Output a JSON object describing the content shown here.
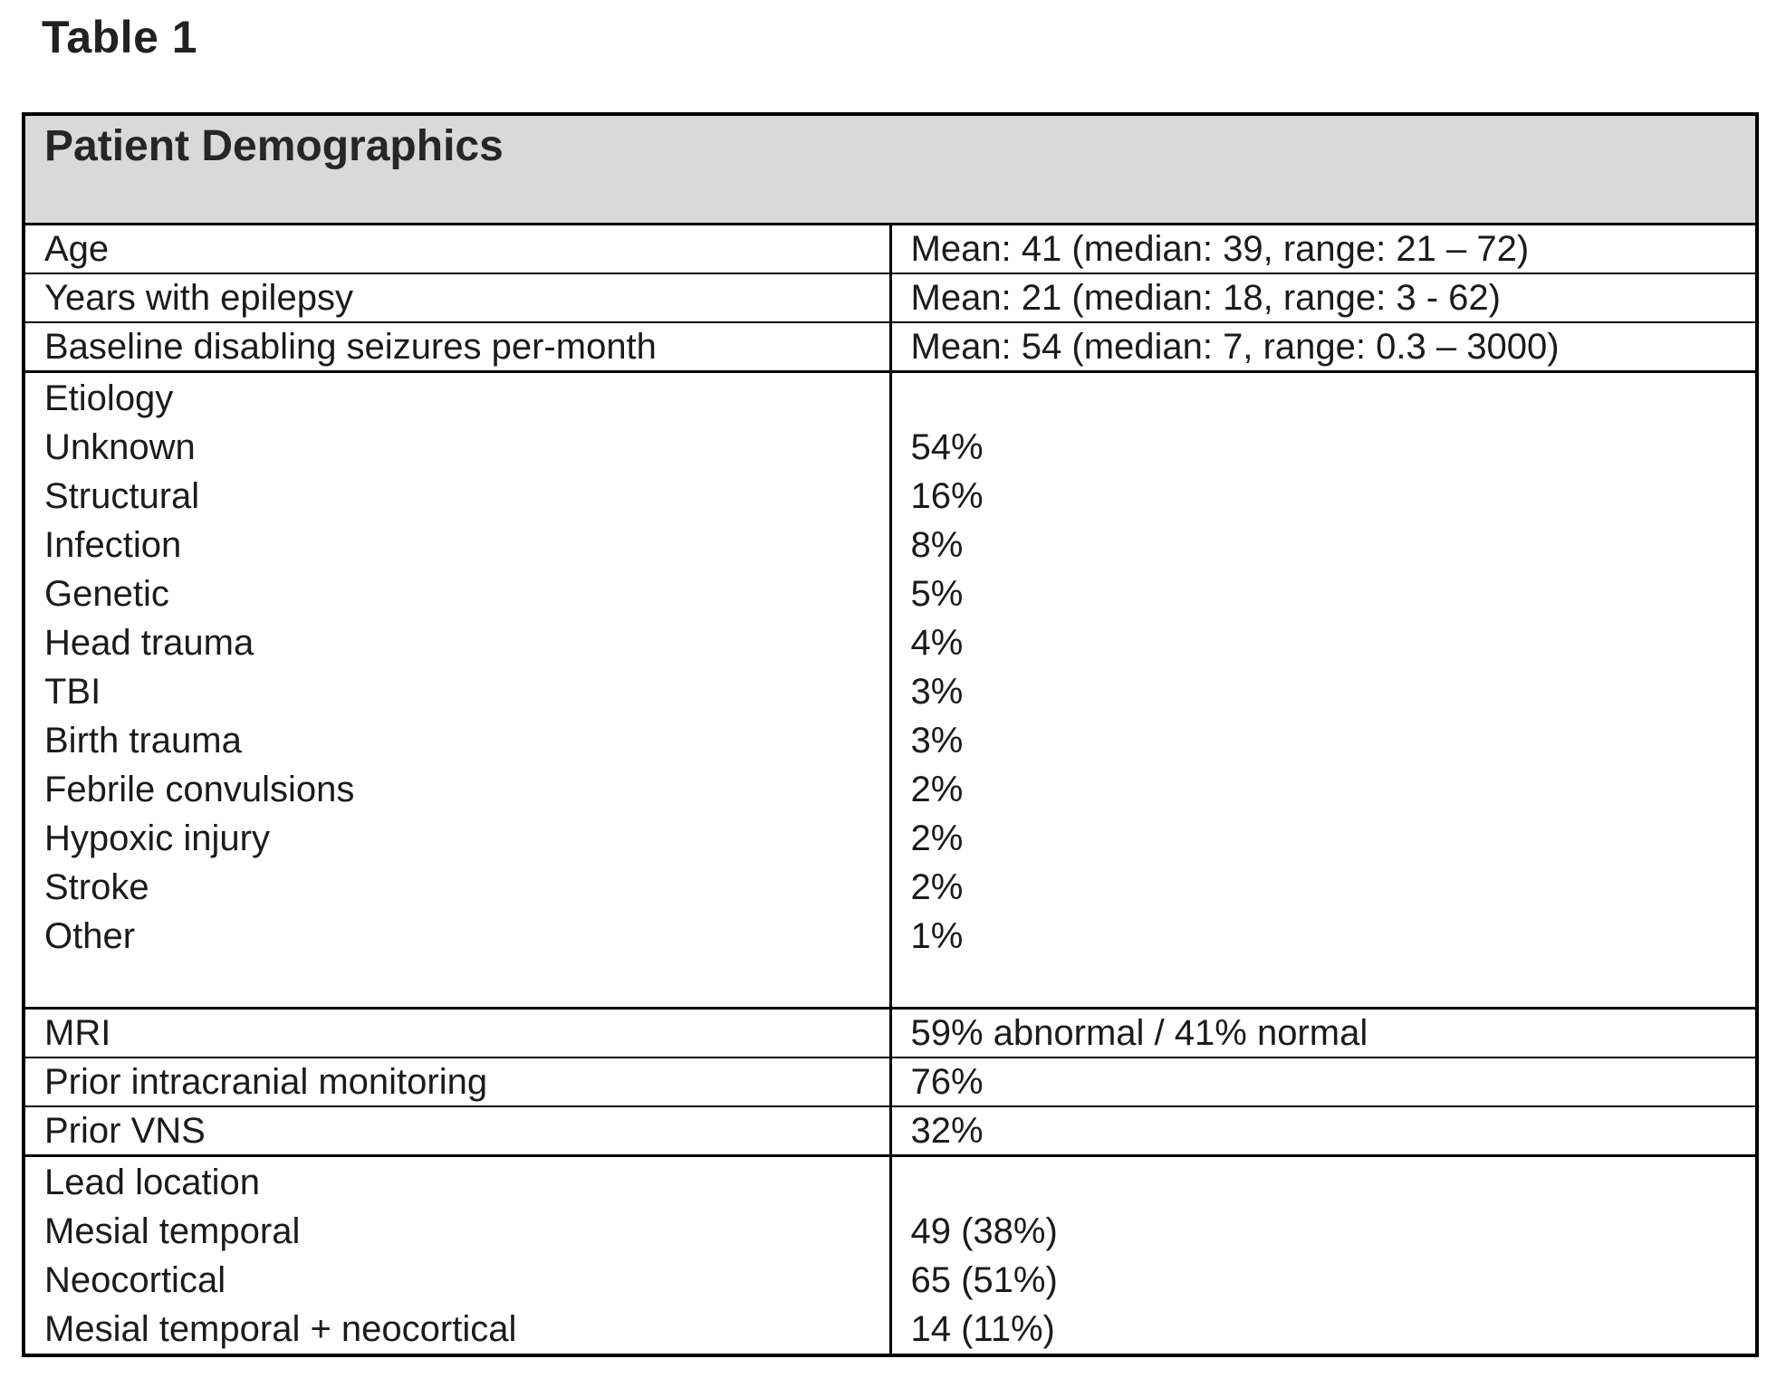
{
  "title": "Table 1",
  "colors": {
    "header_background": "#d9d9d9",
    "border": "#000000",
    "text": "#1b1b1b"
  },
  "table": {
    "header": "Patient Demographics",
    "stats": [
      {
        "label": "Age",
        "value": "Mean: 41 (median: 39, range: 21 – 72)"
      },
      {
        "label": "Years with epilepsy",
        "value": "Mean: 21 (median: 18, range: 3 - 62)"
      },
      {
        "label": "Baseline disabling seizures per-month",
        "value": "Mean: 54 (median: 7, range: 0.3 – 3000)"
      }
    ],
    "etiology": {
      "label": "Etiology",
      "items": [
        {
          "label": "Unknown",
          "value": "54%"
        },
        {
          "label": "Structural",
          "value": "16%"
        },
        {
          "label": "Infection",
          "value": "8%"
        },
        {
          "label": "Genetic",
          "value": "5%"
        },
        {
          "label": "Head trauma",
          "value": "4%"
        },
        {
          "label": "TBI",
          "value": "3%"
        },
        {
          "label": "Birth trauma",
          "value": "3%"
        },
        {
          "label": "Febrile convulsions",
          "value": "2%"
        },
        {
          "label": "Hypoxic injury",
          "value": "2%"
        },
        {
          "label": "Stroke",
          "value": "2%"
        },
        {
          "label": "Other",
          "value": "1%"
        }
      ]
    },
    "mid_stats": [
      {
        "label": "MRI",
        "value": "59% abnormal / 41% normal"
      },
      {
        "label": "Prior intracranial monitoring",
        "value": "76%"
      },
      {
        "label": "Prior VNS",
        "value": "32%"
      }
    ],
    "lead_location": {
      "label": "Lead location",
      "items": [
        {
          "label": "Mesial temporal",
          "value": "49 (38%)"
        },
        {
          "label": "Neocortical",
          "value": "65 (51%)"
        },
        {
          "label": "Mesial temporal + neocortical",
          "value": "14 (11%)"
        }
      ]
    }
  }
}
